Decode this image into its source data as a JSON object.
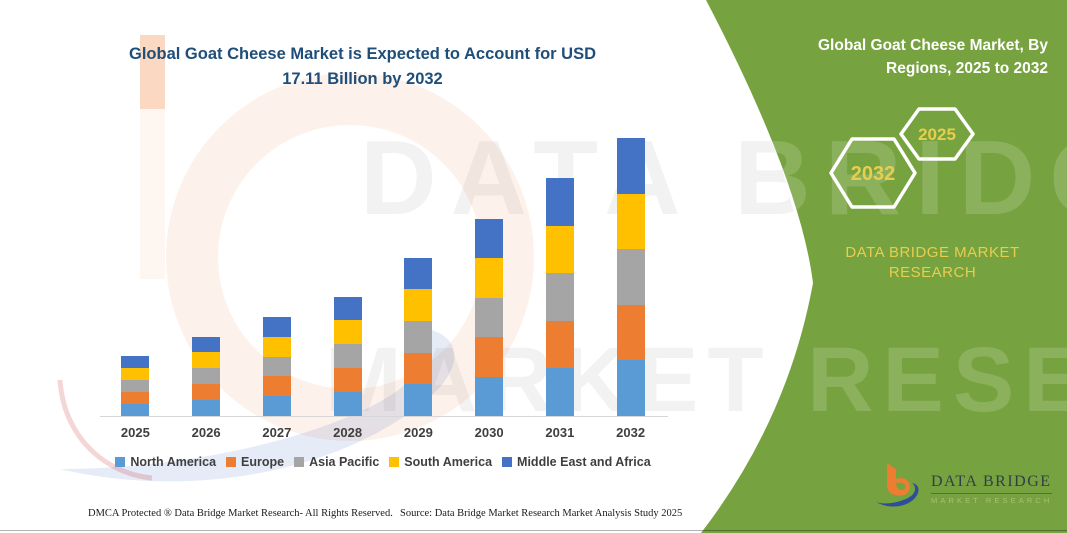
{
  "colors": {
    "panel_green": "#76A23F",
    "title_blue": "#1F4E79",
    "gold": "#E8CE4E",
    "axis_text": "#3F3F3F",
    "white": "#FFFFFF"
  },
  "chart": {
    "title_lines": [
      "Global Goat Cheese Market is Expected to Account for USD",
      "17.11 Billion by 2032"
    ]
  },
  "chart_data": {
    "type": "bar",
    "stacked": true,
    "title": "Global Goat Cheese Market is Expected to Account for USD 17.11 Billion by 2032",
    "unit": "USD Billion",
    "categories": [
      "2025",
      "2026",
      "2027",
      "2028",
      "2029",
      "2030",
      "2031",
      "2032"
    ],
    "series": [
      {
        "name": "North America",
        "color": "#5B9BD5",
        "values": [
          0.74,
          0.98,
          1.22,
          1.47,
          1.95,
          2.43,
          2.93,
          3.42
        ]
      },
      {
        "name": "Europe",
        "color": "#ED7D31",
        "values": [
          0.74,
          0.98,
          1.22,
          1.47,
          1.95,
          2.43,
          2.93,
          3.42
        ]
      },
      {
        "name": "Asia Pacific",
        "color": "#A5A5A5",
        "values": [
          0.74,
          0.98,
          1.22,
          1.47,
          1.95,
          2.43,
          2.93,
          3.42
        ]
      },
      {
        "name": "South America",
        "color": "#FFC000",
        "values": [
          0.74,
          0.98,
          1.22,
          1.47,
          1.95,
          2.43,
          2.93,
          3.42
        ]
      },
      {
        "name": "Middle East and Africa",
        "color": "#4472C4",
        "values": [
          0.74,
          0.98,
          1.22,
          1.47,
          1.95,
          2.43,
          2.93,
          3.43
        ]
      }
    ],
    "totals": [
      3.7,
      4.9,
      6.1,
      7.35,
      9.75,
      12.15,
      14.65,
      17.11
    ],
    "ylim": [
      0,
      17.11
    ],
    "grid": false,
    "legend_position": "bottom",
    "xlabel": "",
    "ylabel": ""
  },
  "panel": {
    "title_lines": [
      "Global Goat Cheese Market, By",
      "Regions, 2025 to 2032"
    ],
    "hexagons": [
      {
        "label": "2032"
      },
      {
        "label": "2025"
      }
    ],
    "brand_lines": [
      "DATA BRIDGE MARKET",
      "RESEARCH"
    ]
  },
  "watermark": {
    "line1": "DATA BRIDGE",
    "line2": "MARKET RESEARCH"
  },
  "footer": {
    "dmca": "DMCA Protected ® Data Bridge Market Research-  All Rights Reserved.",
    "source": "Source: Data Bridge Market Research  Market Analysis Study 2025"
  },
  "logo": {
    "wordmark": "DATA BRIDGE",
    "subtext": "MARKET RESEARCH"
  }
}
